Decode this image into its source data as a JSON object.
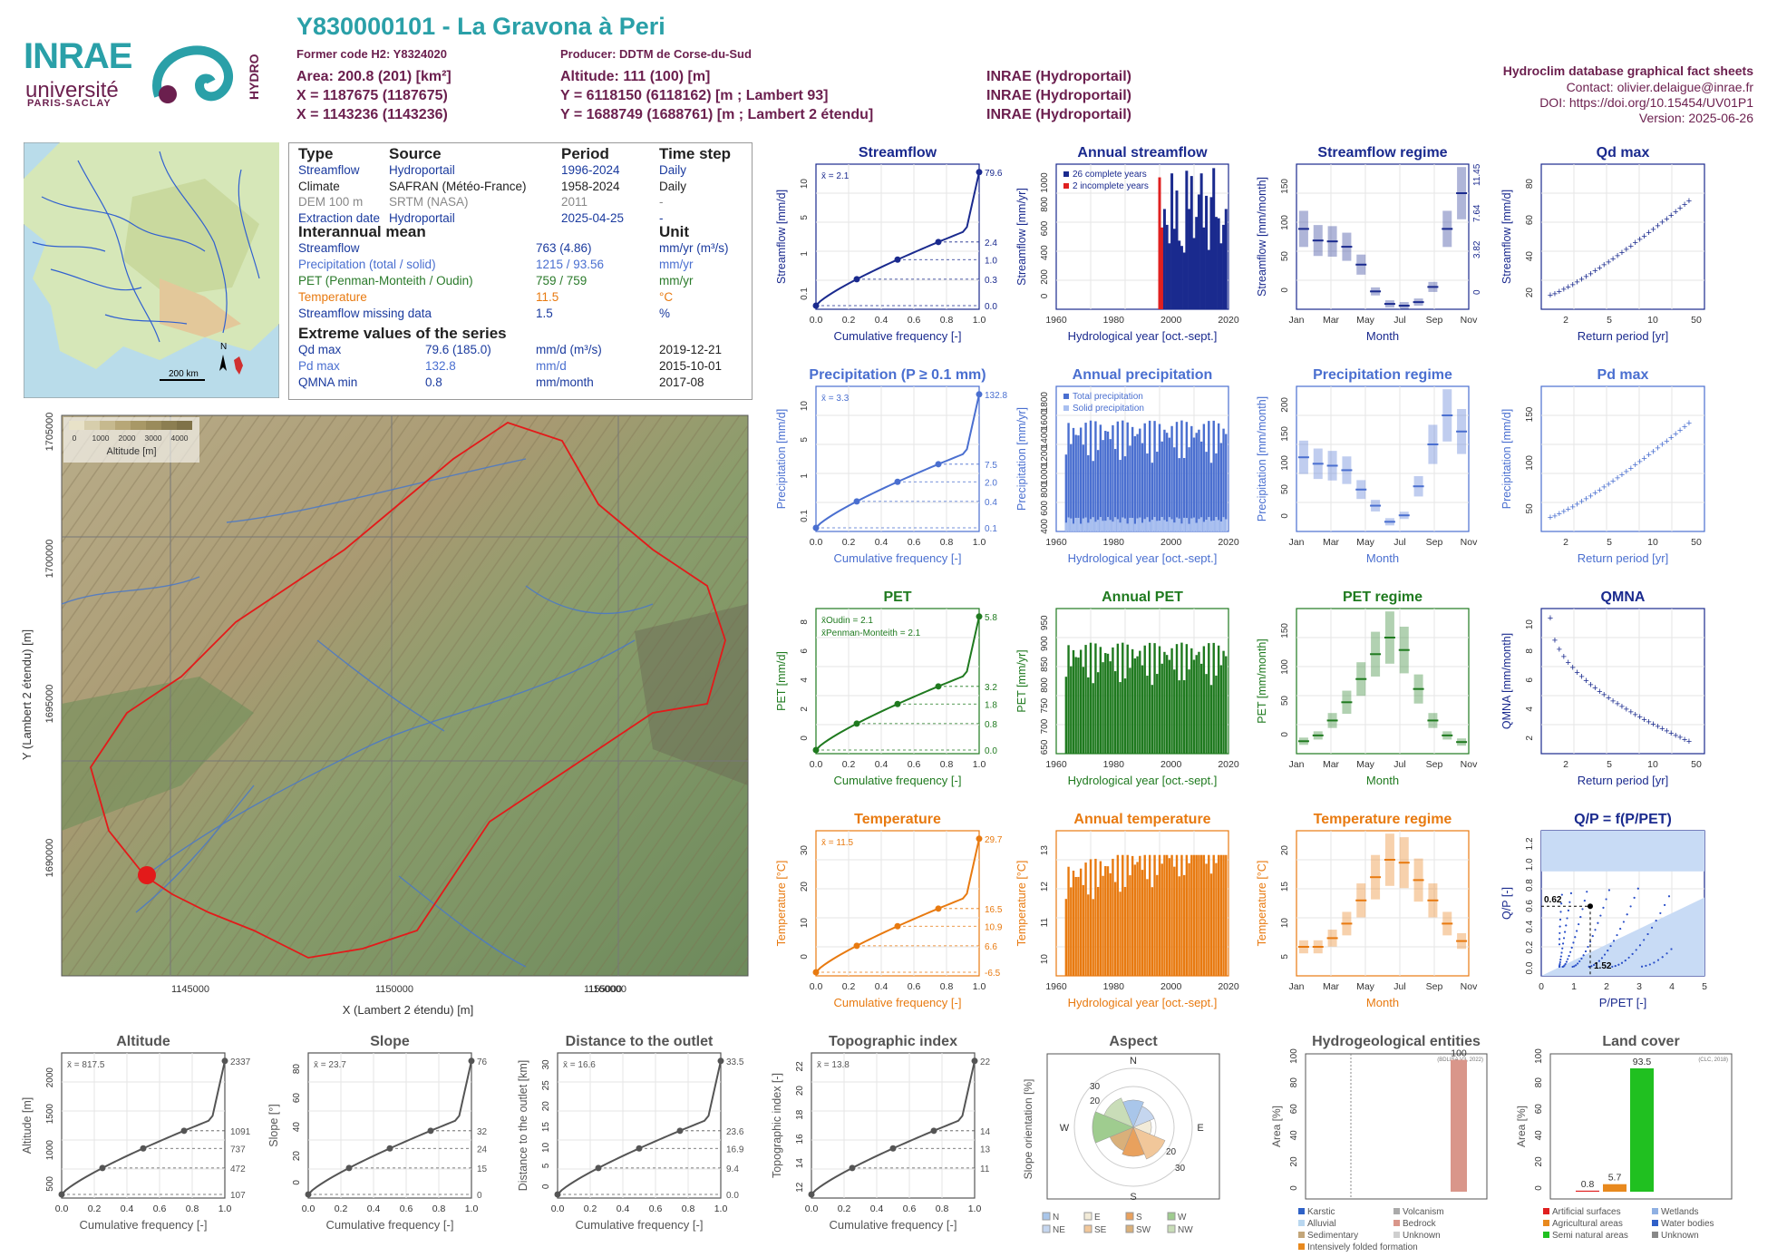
{
  "header": {
    "title": "Y830000101 - La Gravona à Peri",
    "former_code": "Former code H2: Y8324020",
    "producer": "Producer: DDTM de Corse-du-Sud",
    "area": "Area: 200.8 (201) [km²]",
    "altitude": "Altitude: 111 (100) [m]",
    "x93": "X = 1187675 (1187675)",
    "y93": "Y = 6118150 (6118162) [m ; Lambert 93]",
    "x2e": "X = 1143236 (1143236)",
    "y2e": "Y = 1688749 (1688761) [m ; Lambert 2 étendu]",
    "src1": "INRAE (Hydroportail)",
    "src2": "INRAE (Hydroportail)",
    "src3": "INRAE (Hydroportail)",
    "db_title": "Hydroclim database graphical fact sheets",
    "contact": "Contact: olivier.delaigue@inrae.fr",
    "doi": "DOI: https://doi.org/10.15454/UV01P1",
    "version": "Version: 2025-06-26"
  },
  "logos": {
    "inrae": "INRAE",
    "univ": "université",
    "paris_saclay": "PARIS-SACLAY",
    "hydro": "HYDRO"
  },
  "inset_map": {
    "scale": "200 km",
    "north": "N"
  },
  "info": {
    "head_type": "Type",
    "head_source": "Source",
    "head_period": "Period",
    "head_step": "Time step",
    "rows": [
      {
        "type": "Streamflow",
        "source": "Hydroportail",
        "period": "1996-2024",
        "step": "Daily",
        "color": "#1a3a9e"
      },
      {
        "type": "Climate",
        "source": "SAFRAN (Météo-France)",
        "period": "1958-2024",
        "step": "Daily",
        "color": "#222222"
      },
      {
        "type": "DEM 100 m",
        "source": "SRTM (NASA)",
        "period": "2011",
        "step": "-",
        "color": "#888888"
      },
      {
        "type": "Extraction date",
        "source": "Hydroportail",
        "period": "2025-04-25",
        "step": "-",
        "color": "#1a3a9e"
      }
    ],
    "mean_head": "Interannual mean",
    "unit_head": "Unit",
    "mean_rows": [
      {
        "label": "Streamflow",
        "value": "763 (4.86)",
        "unit": "mm/yr (m³/s)",
        "color": "#1a3a9e"
      },
      {
        "label": "Precipitation (total / solid)",
        "value": "1215 / 93.56",
        "unit": "mm/yr",
        "color": "#4a6fd0"
      },
      {
        "label": "PET (Penman-Monteith / Oudin)",
        "value": "759 / 759",
        "unit": "mm/yr",
        "color": "#2a7a2a"
      },
      {
        "label": "Temperature",
        "value": "11.5",
        "unit": "°C",
        "color": "#e87a10"
      },
      {
        "label": "Streamflow missing data",
        "value": "1.5",
        "unit": "%",
        "color": "#1a3a9e"
      }
    ],
    "extreme_head": "Extreme values of the series",
    "extreme_rows": [
      {
        "label": "Qd max",
        "value": "79.6 (185.0)",
        "unit": "mm/d (m³/s)",
        "date": "2019-12-21",
        "color": "#1a3a9e"
      },
      {
        "label": "Pd max",
        "value": "132.8",
        "unit": "mm/d",
        "date": "2015-10-01",
        "color": "#4a6fd0"
      },
      {
        "label": "QMNA min",
        "value": "0.8",
        "unit": "mm/month",
        "date": "2017-08",
        "color": "#1a3a9e"
      }
    ]
  },
  "basin_map": {
    "legend_title": "Altitude [m]",
    "legend_ticks": [
      "0",
      "1000",
      "2000",
      "3000",
      "4000"
    ],
    "xlabel": "X (Lambert 2 étendu) [m]",
    "ylabel": "Y (Lambert 2 étendu) [m]",
    "xticks": [
      "1145000",
      "1150000",
      "1155000",
      "1160000"
    ],
    "yticks": [
      "1705000",
      "1700000",
      "1695000",
      "1690000"
    ]
  },
  "chart_data": [
    {
      "id": "streamflow",
      "type": "line",
      "title": "Streamflow",
      "color": "#1a2a8e",
      "xlabel": "Cumulative frequency [-]",
      "ylabel": "Streamflow [mm/d]",
      "mean_label": "x̄ = 2.1",
      "right_ticks": [
        "79.6",
        "2.4",
        "1.0",
        "0.3",
        "0.0"
      ],
      "left_ticks": [
        "10",
        "5",
        "1",
        "0.1"
      ],
      "xticks": [
        "0.0",
        "0.2",
        "0.4",
        "0.6",
        "0.8",
        "1.0"
      ]
    },
    {
      "id": "annual_streamflow",
      "type": "bar",
      "title": "Annual streamflow",
      "color": "#1a2a8e",
      "xlabel": "Hydrological year [oct.-sept.]",
      "ylabel": "Streamflow [mm/yr]",
      "legend": [
        "26 complete years",
        "2 incomplete years"
      ],
      "yticks": [
        "1000",
        "800",
        "600",
        "400",
        "200",
        "0"
      ],
      "xticks": [
        "1960",
        "1980",
        "2000",
        "2020"
      ],
      "x": [
        1997,
        1998,
        1999,
        2000,
        2001,
        2002,
        2003,
        2004,
        2005,
        2006,
        2007,
        2008,
        2009,
        2010,
        2011,
        2012,
        2013,
        2014,
        2015,
        2016,
        2017,
        2018,
        2019,
        2020,
        2021,
        2022,
        2023,
        2024
      ],
      "values": [
        1000,
        620,
        760,
        640,
        500,
        1030,
        610,
        900,
        520,
        480,
        430,
        1050,
        760,
        1010,
        540,
        700,
        870,
        1030,
        620,
        860,
        450,
        850,
        1070,
        700,
        690,
        500,
        640,
        760
      ]
    },
    {
      "id": "streamflow_regime",
      "type": "box",
      "title": "Streamflow regime",
      "color": "#1a2a8e",
      "xlabel": "Month",
      "ylabel": "Streamflow [mm/month]",
      "yticks": [
        "150",
        "100",
        "50",
        "0"
      ],
      "right_ticks": [
        "11.45",
        "7.64",
        "3.82",
        "0"
      ],
      "xticks": [
        "Jan",
        "Mar",
        "May",
        "Jul",
        "Sep",
        "Nov"
      ],
      "median": [
        90,
        77,
        76,
        70,
        50,
        20,
        6,
        4,
        8,
        25,
        90,
        130
      ]
    },
    {
      "id": "qd_max",
      "type": "scatter",
      "title": "Qd max",
      "color": "#1a2a8e",
      "xlabel": "Return period [yr]",
      "ylabel": "Streamflow [mm/d]",
      "yticks": [
        "80",
        "60",
        "40",
        "20"
      ],
      "xticks": [
        "2",
        "5",
        "10",
        "50"
      ]
    },
    {
      "id": "precipitation",
      "type": "line",
      "title": "Precipitation (P ≥ 0.1 mm)",
      "color": "#4a6fd0",
      "xlabel": "Cumulative frequency [-]",
      "ylabel": "Precipitation [mm/d]",
      "mean_label": "x̄ = 3.3",
      "right_ticks": [
        "132.8",
        "7.5",
        "2.0",
        "0.4",
        "0.1"
      ],
      "left_ticks": [
        "10",
        "5",
        "1",
        "0.1"
      ],
      "xticks": [
        "0.0",
        "0.2",
        "0.4",
        "0.6",
        "0.8",
        "1.0"
      ]
    },
    {
      "id": "annual_precipitation",
      "type": "bar",
      "title": "Annual precipitation",
      "color": "#4a6fd0",
      "xlabel": "Hydrological year [oct.-sept.]",
      "ylabel": "Precipitation [mm/yr]",
      "legend": [
        "Total precipitation",
        "Solid precipitation"
      ],
      "yticks": [
        "1800",
        "1600",
        "1400",
        "1200",
        "1000",
        "800",
        "600",
        "400"
      ],
      "xticks": [
        "1960",
        "1980",
        "2000",
        "2020"
      ]
    },
    {
      "id": "precipitation_regime",
      "type": "box",
      "title": "Precipitation regime",
      "color": "#4a6fd0",
      "xlabel": "Month",
      "ylabel": "Precipitation [mm/month]",
      "yticks": [
        "200",
        "150",
        "100",
        "50",
        "0"
      ],
      "xticks": [
        "Jan",
        "Mar",
        "May",
        "Jul",
        "Sep",
        "Nov"
      ],
      "median": [
        115,
        105,
        102,
        95,
        65,
        40,
        15,
        25,
        70,
        135,
        180,
        155
      ]
    },
    {
      "id": "pd_max",
      "type": "scatter",
      "title": "Pd max",
      "color": "#4a6fd0",
      "xlabel": "Return period [yr]",
      "ylabel": "Precipitation [mm/d]",
      "yticks": [
        "150",
        "100",
        "50"
      ],
      "xticks": [
        "2",
        "5",
        "10",
        "50"
      ]
    },
    {
      "id": "pet",
      "type": "line",
      "title": "PET",
      "color": "#1f7a1f",
      "xlabel": "Cumulative frequency [-]",
      "ylabel": "PET [mm/d]",
      "mean_label": "x̄Oudin = 2.1",
      "mean_label2": "x̄Penman-Monteith = 2.1",
      "right_ticks": [
        "5.8",
        "3.2",
        "1.8",
        "0.8",
        "0.0"
      ],
      "left_ticks": [
        "8",
        "6",
        "4",
        "2",
        "0"
      ],
      "xticks": [
        "0.0",
        "0.2",
        "0.4",
        "0.6",
        "0.8",
        "1.0"
      ]
    },
    {
      "id": "annual_pet",
      "type": "bar",
      "title": "Annual PET",
      "color": "#1f7a1f",
      "xlabel": "Hydrological year [oct.-sept.]",
      "ylabel": "PET [mm/yr]",
      "yticks": [
        "950",
        "900",
        "850",
        "800",
        "750",
        "700",
        "650"
      ],
      "xticks": [
        "1960",
        "1980",
        "2000",
        "2020"
      ]
    },
    {
      "id": "pet_regime",
      "type": "box",
      "title": "PET regime",
      "color": "#1f7a1f",
      "xlabel": "Month",
      "ylabel": "PET [mm/month]",
      "yticks": [
        "150",
        "100",
        "50",
        "0"
      ],
      "xticks": [
        "Jan",
        "Mar",
        "May",
        "Jul",
        "Sep",
        "Nov"
      ],
      "median": [
        15,
        22,
        40,
        62,
        90,
        120,
        140,
        125,
        78,
        40,
        22,
        14
      ]
    },
    {
      "id": "qmna",
      "type": "scatter",
      "title": "QMNA",
      "color": "#1a2a8e",
      "xlabel": "Return period [yr]",
      "ylabel": "QMNA [mm/month]",
      "yticks": [
        "10",
        "8",
        "6",
        "4",
        "2"
      ],
      "xticks": [
        "2",
        "5",
        "10",
        "50"
      ]
    },
    {
      "id": "temperature",
      "type": "line",
      "title": "Temperature",
      "color": "#e87a10",
      "xlabel": "Cumulative frequency [-]",
      "ylabel": "Temperature [°C]",
      "mean_label": "x̄ = 11.5",
      "right_ticks": [
        "29.7",
        "16.5",
        "10.9",
        "6.6",
        "-6.5"
      ],
      "left_ticks": [
        "30",
        "20",
        "10",
        "0"
      ],
      "xticks": [
        "0.0",
        "0.2",
        "0.4",
        "0.6",
        "0.8",
        "1.0"
      ]
    },
    {
      "id": "annual_temperature",
      "type": "bar",
      "title": "Annual temperature",
      "color": "#e87a10",
      "xlabel": "Hydrological year [oct.-sept.]",
      "ylabel": "Temperature [°C]",
      "yticks": [
        "13",
        "12",
        "11",
        "10"
      ],
      "xticks": [
        "1960",
        "1980",
        "2000",
        "2020"
      ]
    },
    {
      "id": "temperature_regime",
      "type": "box",
      "title": "Temperature regime",
      "color": "#e87a10",
      "xlabel": "Month",
      "ylabel": "Temperature [°C]",
      "yticks": [
        "20",
        "15",
        "10",
        "5"
      ],
      "xticks": [
        "Jan",
        "Mar",
        "May",
        "Jul",
        "Sep",
        "Nov"
      ],
      "median": [
        5,
        5,
        6.5,
        9,
        13,
        17,
        20,
        19.5,
        16.5,
        13,
        9,
        6
      ]
    },
    {
      "id": "qp",
      "type": "scatter",
      "title": "Q/P = f(P/PET)",
      "color": "#1a2a8e",
      "xlabel": "P/PET [-]",
      "ylabel": "Q/P [-]",
      "yticks": [
        "1.2",
        "1.0",
        "0.8",
        "0.6",
        "0.4",
        "0.2",
        "0.0"
      ],
      "xticks": [
        "0",
        "1",
        "2",
        "3",
        "4",
        "5"
      ],
      "point_labels": [
        "0.62",
        "1.52"
      ]
    },
    {
      "id": "altitude",
      "type": "line",
      "title": "Altitude",
      "color": "#555555",
      "xlabel": "Cumulative frequency [-]",
      "ylabel": "Altitude [m]",
      "mean_label": "x̄ = 817.5",
      "right_ticks": [
        "2337",
        "1091",
        "737",
        "472",
        "107"
      ],
      "left_ticks": [
        "2000",
        "1500",
        "1000",
        "500"
      ],
      "xticks": [
        "0.0",
        "0.2",
        "0.4",
        "0.6",
        "0.8",
        "1.0"
      ]
    },
    {
      "id": "slope",
      "type": "line",
      "title": "Slope",
      "color": "#555555",
      "xlabel": "Cumulative frequency [-]",
      "ylabel": "Slope [°]",
      "mean_label": "x̄ = 23.7",
      "right_ticks": [
        "76",
        "32",
        "24",
        "15",
        "0"
      ],
      "left_ticks": [
        "80",
        "60",
        "40",
        "20",
        "0"
      ],
      "xticks": [
        "0.0",
        "0.2",
        "0.4",
        "0.6",
        "0.8",
        "1.0"
      ]
    },
    {
      "id": "distance",
      "type": "line",
      "title": "Distance to the outlet",
      "color": "#555555",
      "xlabel": "Cumulative frequency [-]",
      "ylabel": "Distance to the outlet [km]",
      "mean_label": "x̄ = 16.6",
      "right_ticks": [
        "33.5",
        "23.6",
        "16.9",
        "9.4",
        "0.0"
      ],
      "left_ticks": [
        "30",
        "25",
        "20",
        "15",
        "10",
        "5",
        "0"
      ],
      "xticks": [
        "0.0",
        "0.2",
        "0.4",
        "0.6",
        "0.8",
        "1.0"
      ]
    },
    {
      "id": "topo_index",
      "type": "line",
      "title": "Topographic index",
      "color": "#555555",
      "xlabel": "Cumulative frequency [-]",
      "ylabel": "Topographic index [-]",
      "mean_label": "x̄ = 13.8",
      "right_ticks": [
        "22",
        "14",
        "13",
        "11"
      ],
      "left_ticks": [
        "22",
        "20",
        "18",
        "16",
        "14",
        "12"
      ],
      "xticks": [
        "0.0",
        "0.2",
        "0.4",
        "0.6",
        "0.8",
        "1.0"
      ]
    },
    {
      "id": "aspect",
      "type": "pie",
      "title": "Aspect",
      "xlabel": "",
      "ylabel": "Slope orientation [%]",
      "dirs": [
        "N",
        "E",
        "S",
        "W"
      ],
      "rings": [
        "30",
        "20",
        "20",
        "30"
      ],
      "legend": [
        {
          "label": "N",
          "color": "#a9c6ea"
        },
        {
          "label": "NE",
          "color": "#c5d6ef"
        },
        {
          "label": "E",
          "color": "#f2ebd8"
        },
        {
          "label": "SE",
          "color": "#f1c79a"
        },
        {
          "label": "S",
          "color": "#e9a15d"
        },
        {
          "label": "SW",
          "color": "#d9b07a"
        },
        {
          "label": "W",
          "color": "#9fcc8f"
        },
        {
          "label": "NW",
          "color": "#c9ddb8"
        }
      ]
    },
    {
      "id": "hydrogeology",
      "type": "bar",
      "title": "Hydrogeological entities",
      "xlabel": "",
      "ylabel": "Area [%]",
      "source": "(BDLISA V3, 2022)",
      "yticks": [
        "100",
        "80",
        "60",
        "40",
        "20",
        "0"
      ],
      "values": [
        100
      ],
      "value_labels": [
        "100"
      ],
      "legend": [
        {
          "label": "Karstic",
          "color": "#2f62c7"
        },
        {
          "label": "Volcanism",
          "color": "#aaaaaa"
        },
        {
          "label": "Alluvial",
          "color": "#b9d7f0"
        },
        {
          "label": "Bedrock",
          "color": "#d9968a"
        },
        {
          "label": "Sedimentary",
          "color": "#c3a67a"
        },
        {
          "label": "Unknown",
          "color": "#cfcfcf"
        },
        {
          "label": "Intensively folded formation",
          "color": "#e8891e"
        }
      ]
    },
    {
      "id": "land_cover",
      "type": "bar",
      "title": "Land cover",
      "xlabel": "",
      "ylabel": "Area [%]",
      "source": "(CLC, 2018)",
      "yticks": [
        "100",
        "80",
        "60",
        "40",
        "20",
        "0"
      ],
      "values": [
        0.8,
        5.7,
        93.5
      ],
      "value_labels": [
        "0.8",
        "5.7",
        "93.5"
      ],
      "legend": [
        {
          "label": "Artificial surfaces",
          "color": "#e02020"
        },
        {
          "label": "Wetlands",
          "color": "#8fb0e3"
        },
        {
          "label": "Agricultural areas",
          "color": "#e8891e"
        },
        {
          "label": "Water bodies",
          "color": "#3060c8"
        },
        {
          "label": "Semi natural areas",
          "color": "#20c020"
        },
        {
          "label": "Unknown",
          "color": "#888888"
        }
      ]
    }
  ]
}
